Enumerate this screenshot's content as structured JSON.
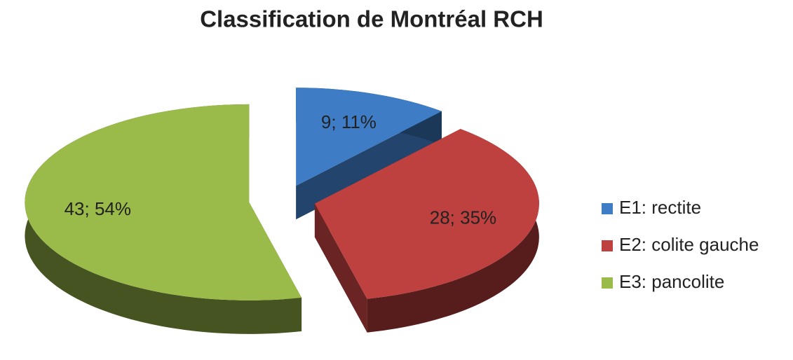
{
  "chart_data": {
    "type": "pie",
    "title": "Classification de Montréal RCH",
    "categories": [
      "E1: rectite",
      "E2: colite gauche",
      "E3: pancolite"
    ],
    "values": [
      9,
      28,
      43
    ],
    "value_labels": [
      "9; 11%",
      "28; 35%",
      "43; 54%"
    ],
    "colors": [
      "#3e7cc6",
      "#be413f",
      "#9aba4a"
    ],
    "legend": "right"
  }
}
